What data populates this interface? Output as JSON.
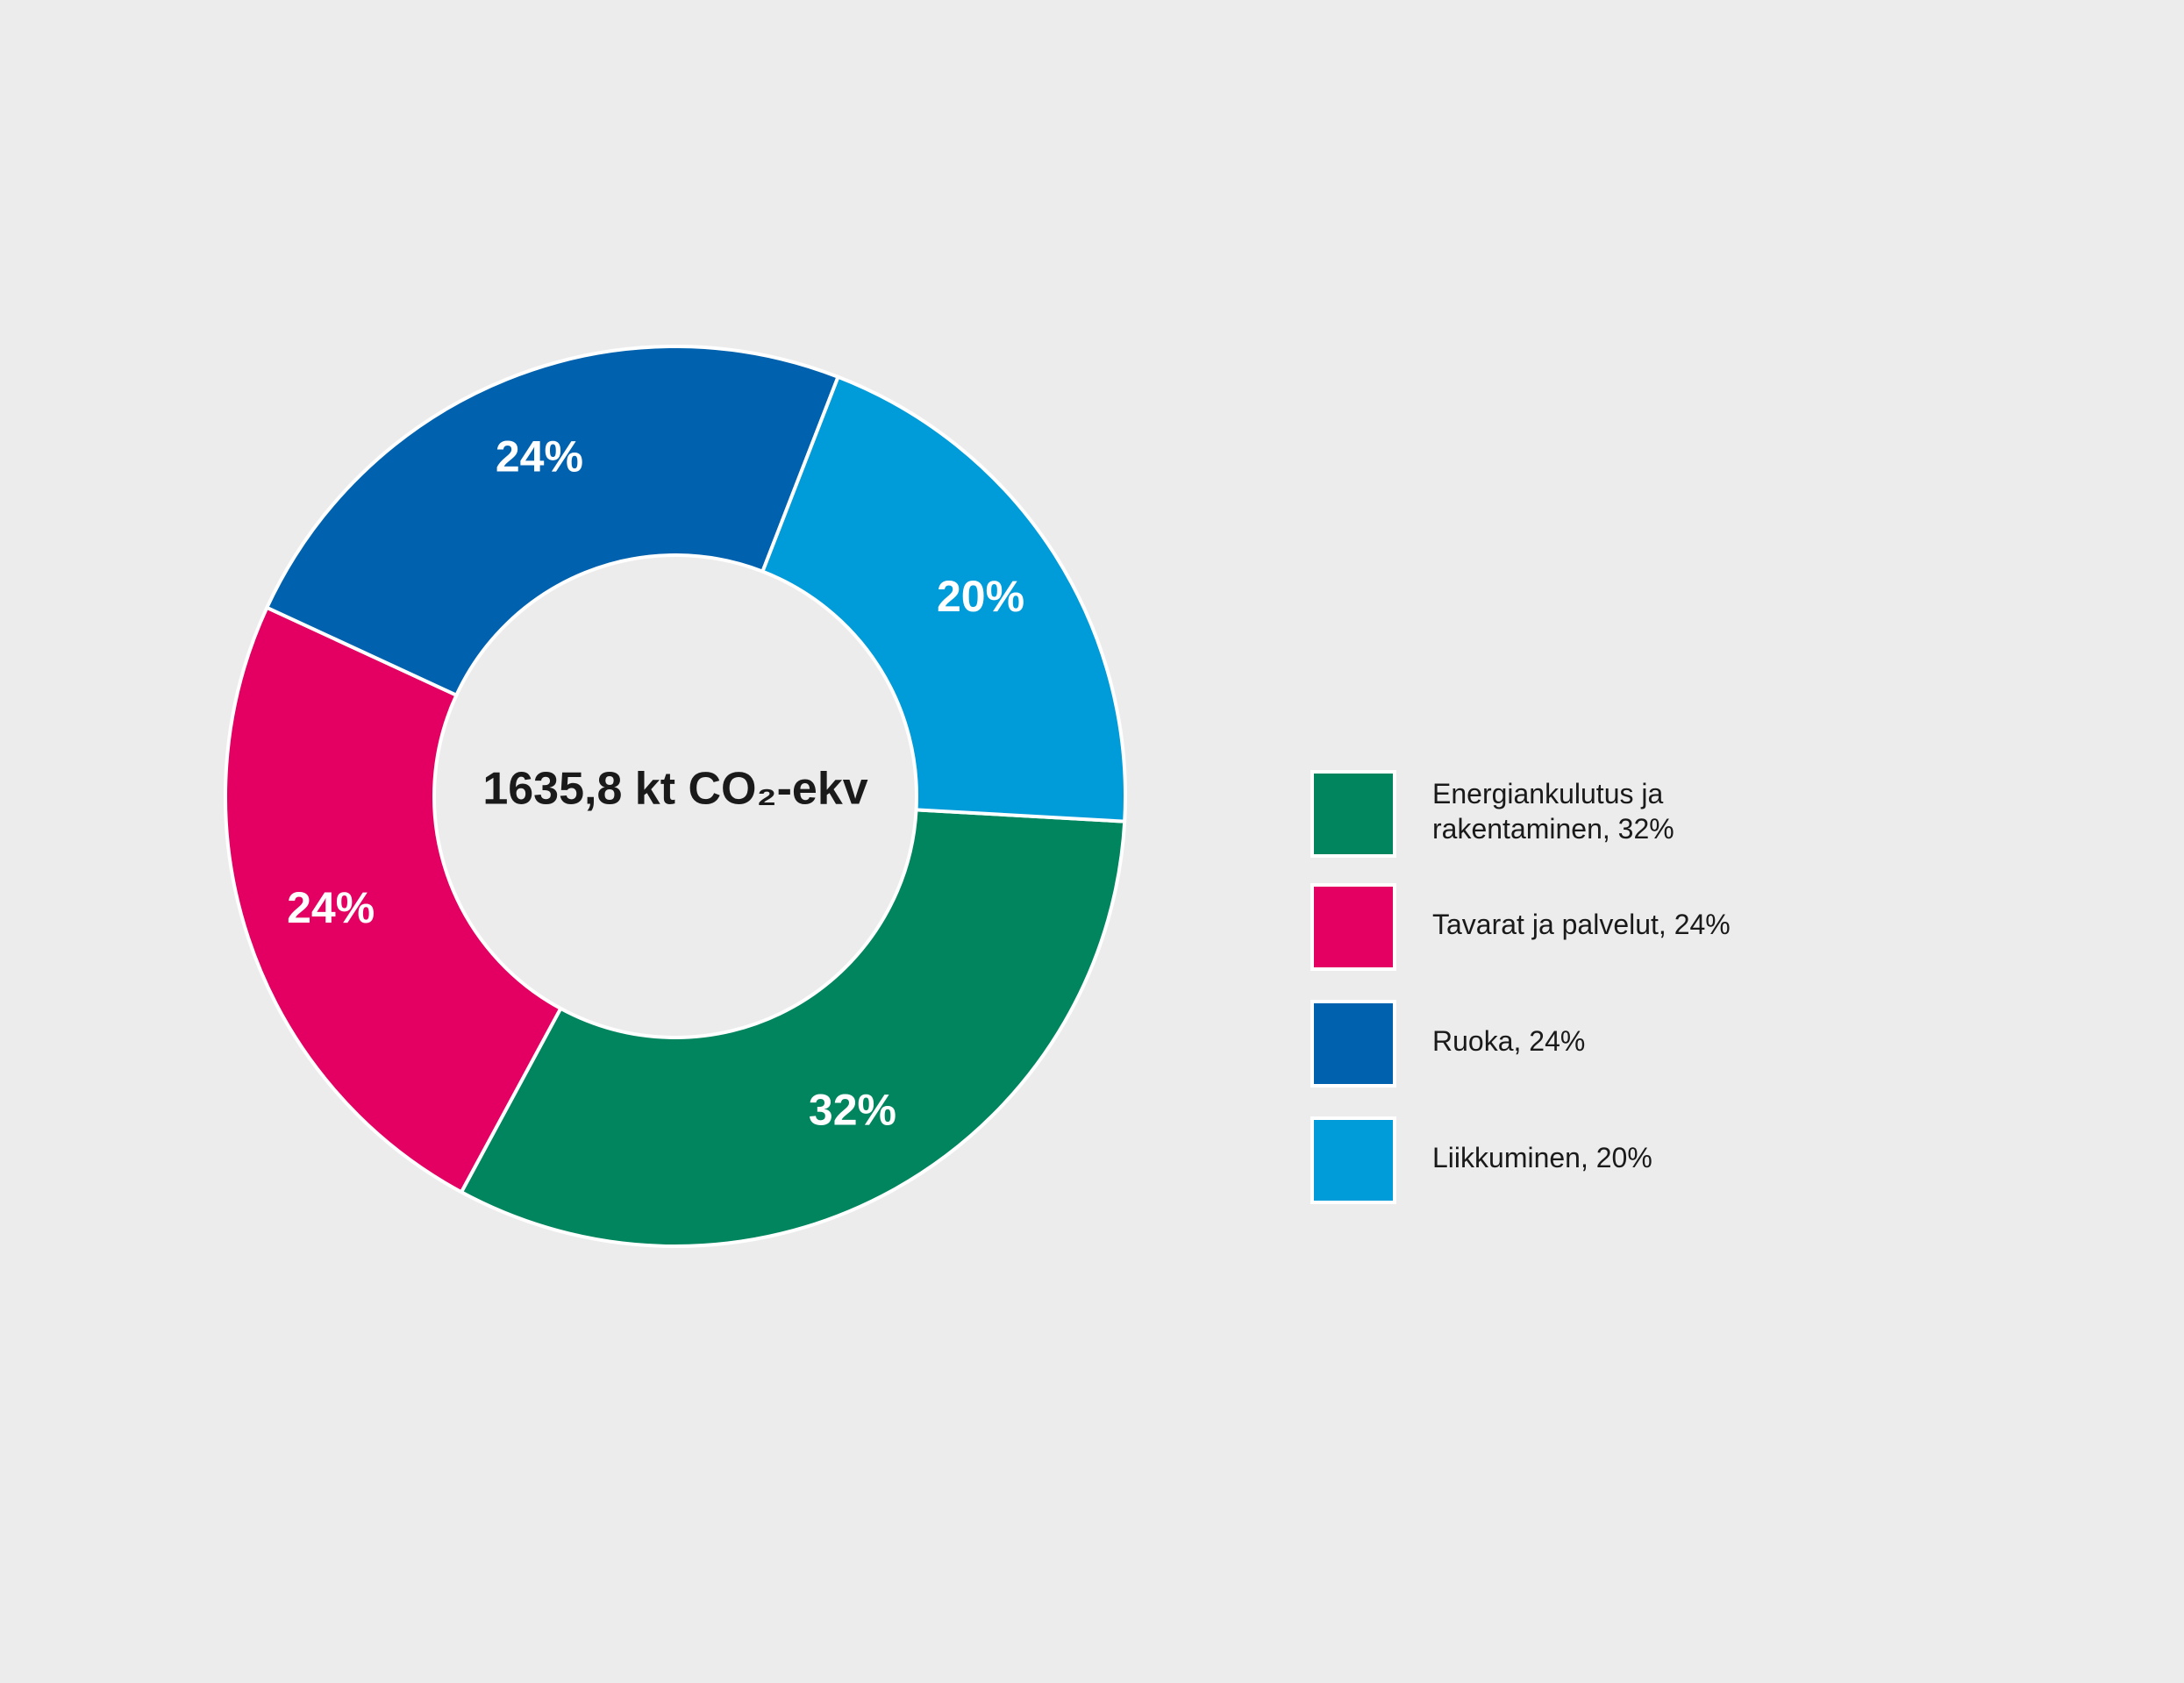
{
  "chart_data": {
    "type": "pie",
    "variant": "donut",
    "center_label": "1635,8 kt CO₂-ekv",
    "slices": [
      {
        "label": "Energiankulutus ja rakentaminen",
        "legend_lines": [
          "Energiankulutus ja",
          "rakentaminen, 32%"
        ],
        "value": 32,
        "value_label": "32%",
        "color": "#00855f"
      },
      {
        "label": "Tavarat ja palvelut",
        "legend_lines": [
          "Tavarat ja palvelut, 24%"
        ],
        "value": 24,
        "value_label": "24%",
        "color": "#e40062"
      },
      {
        "label": "Ruoka",
        "legend_lines": [
          "Ruoka, 24%"
        ],
        "value": 24,
        "value_label": "24%",
        "color": "#0062ae"
      },
      {
        "label": "Liikkuminen",
        "legend_lines": [
          "Liikkuminen, 20%"
        ],
        "value": 20,
        "value_label": "20%",
        "color": "#009bd9"
      }
    ],
    "legend_position": "right",
    "background": "#ececec"
  }
}
